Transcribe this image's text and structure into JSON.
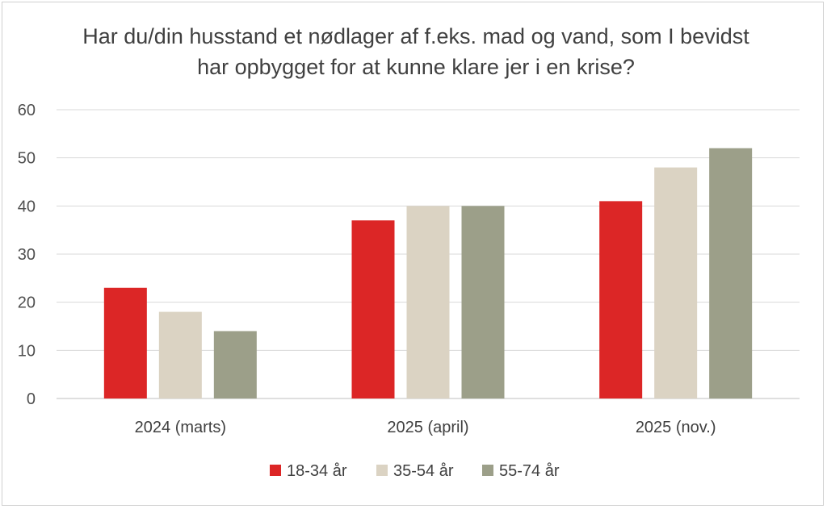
{
  "chart_data": {
    "type": "bar",
    "title": "Har du/din husstand et nødlager af f.eks. mad og vand, som I bevidst har opbygget for at kunne klare jer i en krise?",
    "categories": [
      "2024 (marts)",
      "2025 (april)",
      "2025 (nov.)"
    ],
    "series": [
      {
        "name": "18-34 år",
        "values": [
          23,
          37,
          41
        ],
        "color": "#dc2626"
      },
      {
        "name": "35-54 år",
        "values": [
          18,
          40,
          48
        ],
        "color": "#dbd3c3"
      },
      {
        "name": "55-74 år",
        "values": [
          14,
          40,
          52
        ],
        "color": "#9c9f89"
      }
    ],
    "yticks": [
      "0",
      "10",
      "20",
      "30",
      "40",
      "50",
      "60"
    ],
    "ylim": [
      0,
      60
    ],
    "grid": true,
    "legend": "bottom"
  }
}
